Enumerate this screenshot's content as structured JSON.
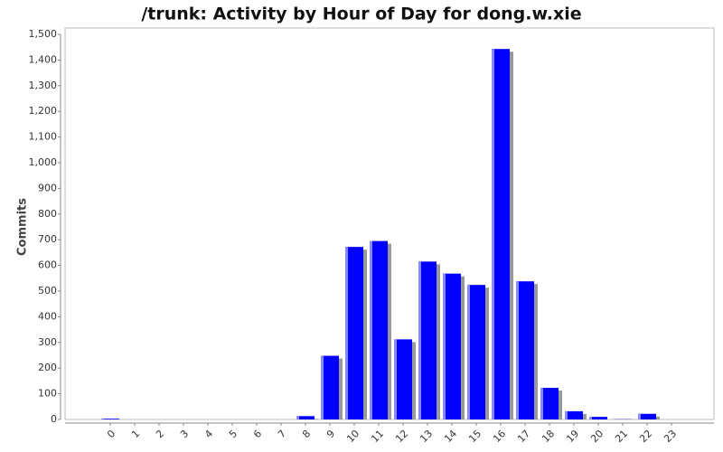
{
  "chart_data": {
    "type": "bar",
    "title": "/trunk: Activity by Hour of Day for dong.w.xie",
    "y_label": "Commits",
    "categories": [
      "0",
      "1",
      "2",
      "3",
      "4",
      "5",
      "6",
      "7",
      "8",
      "9",
      "10",
      "11",
      "12",
      "13",
      "14",
      "15",
      "16",
      "17",
      "18",
      "19",
      "20",
      "21",
      "22",
      "23"
    ],
    "values": [
      3,
      0,
      0,
      0,
      0,
      0,
      0,
      0,
      13,
      248,
      672,
      695,
      312,
      615,
      568,
      524,
      1443,
      538,
      123,
      32,
      10,
      1,
      22,
      0
    ],
    "color": "#0000ff",
    "ylim": [
      0,
      1500
    ],
    "yticks": [
      0,
      100,
      200,
      300,
      400,
      500,
      600,
      700,
      800,
      900,
      {
        "value": 1000,
        "label": "1,000"
      },
      {
        "value": 1100,
        "label": "1,100"
      },
      {
        "value": 1200,
        "label": "1,200"
      },
      {
        "value": 1300,
        "label": "1,300"
      },
      {
        "value": 1400,
        "label": "1,400"
      },
      {
        "value": 1500,
        "label": "1,500"
      }
    ]
  }
}
